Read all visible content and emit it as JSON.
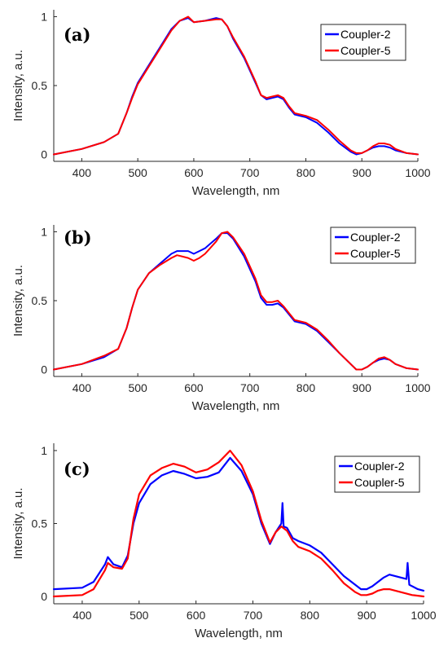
{
  "chart_data": [
    {
      "type": "line",
      "panel_label": "(a)",
      "xlabel": "Wavelength, nm",
      "ylabel": "Intensity, a.u.",
      "xlim": [
        350,
        1000
      ],
      "ylim": [
        -0.05,
        1.05
      ],
      "xticks": [
        400,
        500,
        600,
        700,
        800,
        900,
        1000
      ],
      "yticks": [
        0,
        0.5,
        1
      ],
      "ytick_labels": [
        "0",
        "0.5",
        "1"
      ],
      "legend": "top-right",
      "series": [
        {
          "name": "Coupler-2",
          "color": "#0000ff",
          "x": [
            350,
            400,
            440,
            465,
            480,
            490,
            500,
            520,
            540,
            560,
            575,
            590,
            600,
            620,
            640,
            650,
            660,
            670,
            690,
            710,
            720,
            730,
            740,
            750,
            760,
            770,
            780,
            800,
            820,
            840,
            860,
            880,
            890,
            900,
            910,
            920,
            930,
            940,
            950,
            960,
            980,
            1000
          ],
          "y": [
            0,
            0.04,
            0.09,
            0.15,
            0.3,
            0.42,
            0.52,
            0.65,
            0.78,
            0.91,
            0.97,
            0.99,
            0.96,
            0.97,
            0.99,
            0.98,
            0.93,
            0.84,
            0.7,
            0.52,
            0.43,
            0.4,
            0.41,
            0.42,
            0.4,
            0.34,
            0.29,
            0.27,
            0.23,
            0.16,
            0.08,
            0.02,
            0.0,
            0.01,
            0.03,
            0.05,
            0.06,
            0.06,
            0.05,
            0.03,
            0.01,
            0
          ]
        },
        {
          "name": "Coupler-5",
          "color": "#ff0000",
          "x": [
            350,
            400,
            440,
            465,
            480,
            490,
            500,
            520,
            540,
            560,
            575,
            590,
            600,
            620,
            640,
            650,
            660,
            670,
            690,
            710,
            720,
            730,
            740,
            750,
            760,
            770,
            780,
            800,
            820,
            840,
            860,
            880,
            890,
            900,
            910,
            920,
            930,
            940,
            950,
            960,
            980,
            1000
          ],
          "y": [
            0,
            0.04,
            0.09,
            0.15,
            0.3,
            0.41,
            0.51,
            0.64,
            0.77,
            0.9,
            0.97,
            1.0,
            0.96,
            0.97,
            0.98,
            0.98,
            0.93,
            0.85,
            0.71,
            0.53,
            0.43,
            0.41,
            0.42,
            0.43,
            0.41,
            0.35,
            0.3,
            0.28,
            0.25,
            0.18,
            0.1,
            0.03,
            0.01,
            0.01,
            0.03,
            0.06,
            0.08,
            0.08,
            0.07,
            0.04,
            0.01,
            0
          ]
        }
      ]
    },
    {
      "type": "line",
      "panel_label": "(b)",
      "xlabel": "Wavelength, nm",
      "ylabel": "Intensity, a.u.",
      "xlim": [
        350,
        1000
      ],
      "ylim": [
        -0.05,
        1.05
      ],
      "xticks": [
        400,
        500,
        600,
        700,
        800,
        900,
        1000
      ],
      "yticks": [
        0,
        0.5,
        1
      ],
      "ytick_labels": [
        "0",
        "0.5",
        "1"
      ],
      "legend": "top-right",
      "series": [
        {
          "name": "Coupler-2",
          "color": "#0000ff",
          "x": [
            350,
            400,
            440,
            465,
            480,
            490,
            500,
            520,
            540,
            560,
            570,
            580,
            590,
            600,
            610,
            620,
            640,
            650,
            660,
            670,
            690,
            710,
            720,
            730,
            740,
            750,
            760,
            770,
            780,
            800,
            820,
            840,
            860,
            880,
            890,
            900,
            910,
            920,
            930,
            940,
            950,
            960,
            980,
            1000
          ],
          "y": [
            0,
            0.04,
            0.09,
            0.15,
            0.3,
            0.45,
            0.58,
            0.7,
            0.77,
            0.84,
            0.86,
            0.86,
            0.86,
            0.84,
            0.86,
            0.88,
            0.95,
            0.99,
            0.99,
            0.95,
            0.82,
            0.64,
            0.52,
            0.47,
            0.47,
            0.48,
            0.45,
            0.4,
            0.35,
            0.33,
            0.28,
            0.2,
            0.12,
            0.04,
            0.0,
            0.0,
            0.02,
            0.05,
            0.07,
            0.08,
            0.07,
            0.04,
            0.01,
            0
          ]
        },
        {
          "name": "Coupler-5",
          "color": "#ff0000",
          "x": [
            350,
            400,
            440,
            465,
            480,
            490,
            500,
            520,
            540,
            560,
            570,
            580,
            590,
            600,
            610,
            620,
            640,
            650,
            660,
            670,
            690,
            710,
            720,
            730,
            740,
            750,
            760,
            770,
            780,
            800,
            820,
            840,
            860,
            880,
            890,
            900,
            910,
            920,
            930,
            940,
            950,
            960,
            980,
            1000
          ],
          "y": [
            0,
            0.04,
            0.1,
            0.15,
            0.3,
            0.45,
            0.58,
            0.7,
            0.76,
            0.81,
            0.83,
            0.82,
            0.81,
            0.79,
            0.81,
            0.84,
            0.93,
            0.99,
            1.0,
            0.96,
            0.84,
            0.66,
            0.54,
            0.49,
            0.49,
            0.5,
            0.46,
            0.41,
            0.36,
            0.34,
            0.29,
            0.21,
            0.12,
            0.04,
            0.0,
            0.0,
            0.02,
            0.05,
            0.08,
            0.09,
            0.07,
            0.04,
            0.01,
            0
          ]
        }
      ]
    },
    {
      "type": "line",
      "panel_label": "(c)",
      "xlabel": "Wavelength, nm",
      "ylabel": "Intensity, a.u.",
      "xlim": [
        350,
        1000
      ],
      "ylim": [
        -0.05,
        1.05
      ],
      "xticks": [
        400,
        500,
        600,
        700,
        800,
        900,
        1000
      ],
      "yticks": [
        0,
        0.5,
        1
      ],
      "ytick_labels": [
        "0",
        "0.5",
        "1"
      ],
      "legend": "top-right",
      "series": [
        {
          "name": "Coupler-2",
          "color": "#0000ff",
          "x": [
            350,
            400,
            420,
            440,
            445,
            455,
            470,
            480,
            490,
            500,
            520,
            540,
            560,
            580,
            600,
            620,
            640,
            660,
            680,
            700,
            715,
            730,
            740,
            750,
            752,
            754,
            760,
            770,
            780,
            800,
            820,
            840,
            860,
            880,
            890,
            900,
            910,
            920,
            930,
            940,
            960,
            970,
            972,
            975,
            990,
            1000
          ],
          "y": [
            0.05,
            0.06,
            0.1,
            0.22,
            0.27,
            0.22,
            0.2,
            0.28,
            0.5,
            0.64,
            0.77,
            0.83,
            0.86,
            0.84,
            0.81,
            0.82,
            0.85,
            0.95,
            0.86,
            0.7,
            0.5,
            0.36,
            0.44,
            0.5,
            0.64,
            0.48,
            0.47,
            0.4,
            0.38,
            0.35,
            0.3,
            0.22,
            0.14,
            0.08,
            0.05,
            0.05,
            0.07,
            0.1,
            0.13,
            0.15,
            0.13,
            0.12,
            0.23,
            0.08,
            0.05,
            0.04
          ]
        },
        {
          "name": "Coupler-5",
          "color": "#ff0000",
          "x": [
            350,
            400,
            420,
            440,
            445,
            455,
            470,
            480,
            490,
            500,
            520,
            540,
            560,
            580,
            600,
            620,
            640,
            660,
            680,
            700,
            715,
            730,
            740,
            750,
            760,
            770,
            780,
            800,
            820,
            840,
            860,
            880,
            890,
            900,
            910,
            920,
            930,
            940,
            960,
            980,
            1000
          ],
          "y": [
            0.0,
            0.01,
            0.05,
            0.18,
            0.23,
            0.2,
            0.19,
            0.26,
            0.53,
            0.7,
            0.83,
            0.88,
            0.91,
            0.89,
            0.85,
            0.87,
            0.92,
            1.0,
            0.9,
            0.72,
            0.52,
            0.37,
            0.44,
            0.48,
            0.45,
            0.38,
            0.34,
            0.31,
            0.26,
            0.18,
            0.09,
            0.03,
            0.01,
            0.01,
            0.02,
            0.04,
            0.05,
            0.05,
            0.03,
            0.01,
            0.0
          ]
        }
      ]
    }
  ]
}
